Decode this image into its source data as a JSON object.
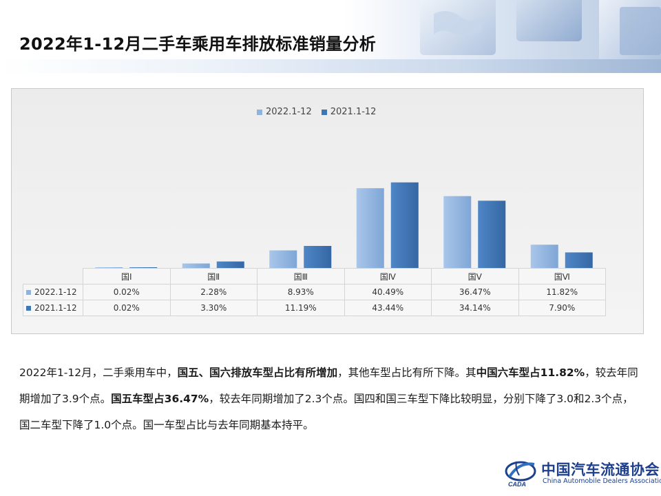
{
  "header": {
    "title": "2022年1-12月二手车乘用车排放标准销量分析"
  },
  "chart_data": {
    "type": "bar",
    "categories": [
      "国Ⅰ",
      "国Ⅱ",
      "国Ⅲ",
      "国Ⅳ",
      "国Ⅴ",
      "国Ⅵ"
    ],
    "series": [
      {
        "name": "2022.1-12",
        "values": [
          0.02,
          2.28,
          8.93,
          40.49,
          36.47,
          11.82
        ],
        "labels": [
          "0.02%",
          "2.28%",
          "8.93%",
          "40.49%",
          "36.47%",
          "11.82%"
        ],
        "color": "#8fb3df"
      },
      {
        "name": "2021.1-12",
        "values": [
          0.02,
          3.3,
          11.19,
          43.44,
          34.14,
          7.9
        ],
        "labels": [
          "0.02%",
          "3.30%",
          "11.19%",
          "43.44%",
          "34.14%",
          "7.90%"
        ],
        "color": "#3f76b4"
      }
    ],
    "ylim": [
      0,
      50
    ],
    "grid": false,
    "legend": "top-center",
    "table": true
  },
  "text": {
    "p1": "2022年1-12月，二手乘用车中，",
    "b1": "国五、国六排放车型占比有所增加",
    "p2": "，其他车型占比有所下降。其",
    "b2": "中国六车型占11.82%",
    "p3": "，较去年同期增加了3.9个点。",
    "b3": "国五车型占36.47%",
    "p4": "，较去年同期增加了2.3个点。国四和国三车型下降比较明显，分别下降了3.0和2.3个点，国二车型下降了1.0个点。国一车型占比与去年同期基本持平。"
  },
  "logo": {
    "cn": "中国汽车流通协会",
    "en": "China Automobile Dealers Association",
    "mark_text": "CADA"
  },
  "colors": {
    "s1": "#8fb3df",
    "s2": "#3f76b4",
    "brand": "#1d3f8c"
  }
}
